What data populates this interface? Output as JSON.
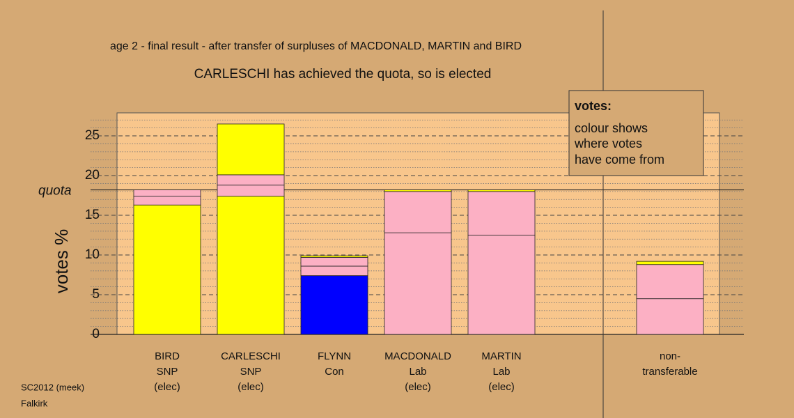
{
  "chart_data": {
    "type": "stacked-bar",
    "title": "age 2 - final result - after transfer of surpluses of MACDONALD, MARTIN and BIRD",
    "subtitle": "CARLESCHI has achieved the quota, so is elected",
    "y_label": "votes %",
    "quota": {
      "label": "quota",
      "value": 18.2
    },
    "legend_title": "votes:",
    "legend_text": [
      "colour shows",
      "where votes",
      "have come from"
    ],
    "footer": [
      "SC2012 (meek)",
      "Falkirk"
    ],
    "categories": [
      [
        "BIRD",
        "SNP",
        "(elec)"
      ],
      [
        "CARLESCHI",
        "SNP",
        "(elec)"
      ],
      [
        "FLYNN",
        "Con"
      ],
      [
        "MACDONALD",
        "Lab",
        "(elec)"
      ],
      [
        "MARTIN",
        "Lab",
        "(elec)"
      ],
      null,
      [
        "non-",
        "transferable"
      ]
    ],
    "series": [
      {
        "colors": [
          "#ffff00",
          "#ffff00",
          "#0000ff",
          "#fcb0c4",
          "#fcb0c4",
          null,
          "#fcb0c4"
        ],
        "values": [
          16.3,
          17.4,
          7.4,
          12.8,
          12.5,
          null,
          4.5
        ]
      },
      {
        "colors": [
          "#fcb0c4",
          "#fcb0c4",
          "#fcb0c4",
          "#fcb0c4",
          "#fcb0c4",
          null,
          "#fcb0c4"
        ],
        "values": [
          1.1,
          1.4,
          1.2,
          5.2,
          5.5,
          null,
          4.3
        ]
      },
      {
        "colors": [
          "#fcb0c4",
          "#fcb0c4",
          "#fcb0c4",
          "#ffff00",
          "#ffff00",
          null,
          "#ffff00"
        ],
        "values": [
          0.8,
          1.3,
          1.1,
          0.2,
          0.2,
          null,
          0.4
        ]
      },
      {
        "colors": [
          null,
          "#ffff00",
          "#ffff00",
          null,
          null,
          null,
          null
        ],
        "values": [
          null,
          6.4,
          0.2,
          null,
          null,
          null,
          null
        ]
      }
    ],
    "ylim": [
      0,
      27.9
    ],
    "yticks": [
      0,
      5,
      10,
      15,
      20,
      25
    ],
    "minor_yticks": [
      1,
      2,
      3,
      4,
      6,
      7,
      8,
      9,
      11,
      12,
      13,
      14,
      16,
      17,
      18,
      19,
      21,
      22,
      23,
      24,
      26,
      27
    ],
    "grid": true
  }
}
